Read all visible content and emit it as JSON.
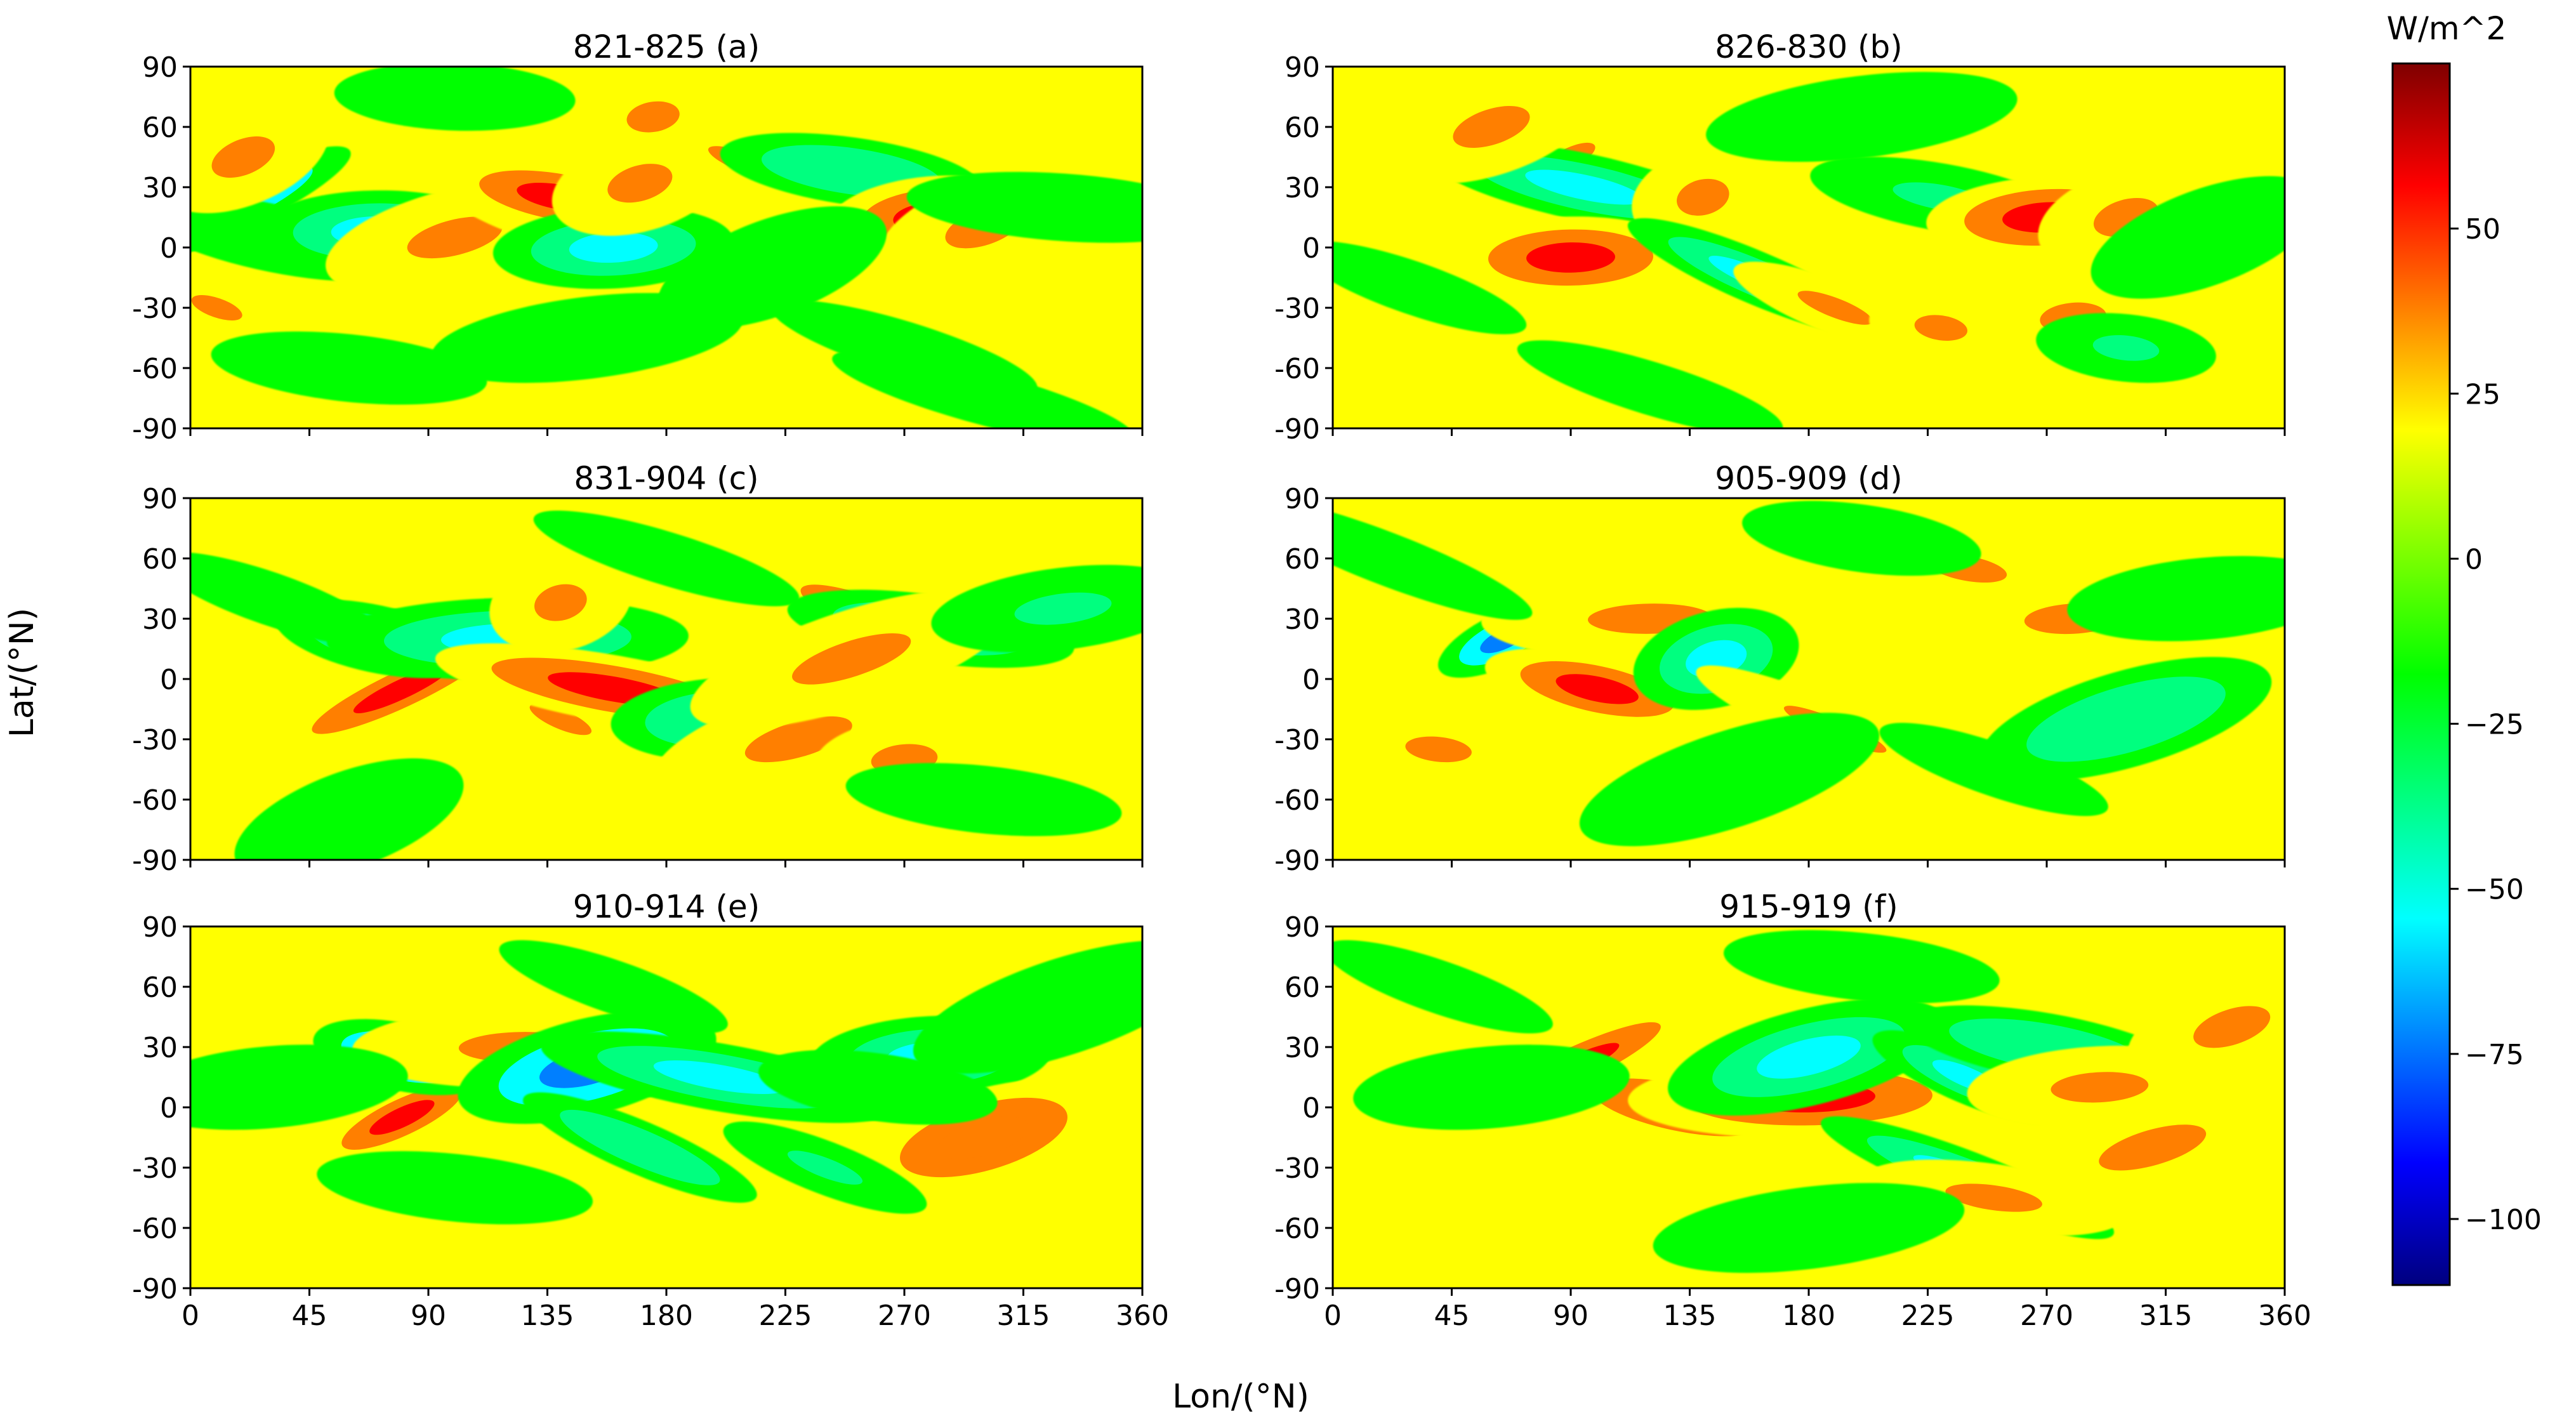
{
  "chart_data": [
    {
      "type": "heatmap",
      "title": "821-825 (a)",
      "xlim": [
        0,
        360
      ],
      "ylim": [
        -90,
        90
      ],
      "blobs": [
        {
          "lon": 15,
          "lat": 20,
          "v": -75
        },
        {
          "lon": 30,
          "lat": 5,
          "v": -25
        },
        {
          "lon": 70,
          "lat": 8,
          "v": -50
        },
        {
          "lon": 100,
          "lat": 5,
          "v": 40
        },
        {
          "lon": 120,
          "lat": 22,
          "v": 35
        },
        {
          "lon": 140,
          "lat": 25,
          "v": 50
        },
        {
          "lon": 160,
          "lat": 0,
          "v": -60
        },
        {
          "lon": 170,
          "lat": 32,
          "v": 35
        },
        {
          "lon": 210,
          "lat": 42,
          "v": 35
        },
        {
          "lon": 250,
          "lat": 38,
          "v": -40
        },
        {
          "lon": 280,
          "lat": 15,
          "v": 50
        },
        {
          "lon": 300,
          "lat": 10,
          "v": 35
        },
        {
          "lon": 10,
          "lat": -30,
          "v": 35
        },
        {
          "lon": 60,
          "lat": -60,
          "v": -25
        },
        {
          "lon": 150,
          "lat": -45,
          "v": -25
        },
        {
          "lon": 220,
          "lat": -10,
          "v": -25
        },
        {
          "lon": 270,
          "lat": -50,
          "v": -25
        },
        {
          "lon": 330,
          "lat": 20,
          "v": -25
        },
        {
          "lon": 175,
          "lat": 65,
          "v": 35
        },
        {
          "lon": 20,
          "lat": 45,
          "v": 35
        },
        {
          "lon": 300,
          "lat": -75,
          "v": -25
        },
        {
          "lon": 100,
          "lat": 75,
          "v": -25
        }
      ]
    },
    {
      "type": "heatmap",
      "title": "826-830 (b)",
      "xlim": [
        0,
        360
      ],
      "ylim": [
        -90,
        90
      ],
      "blobs": [
        {
          "lon": 90,
          "lat": 45,
          "v": 35
        },
        {
          "lon": 95,
          "lat": 30,
          "v": -55
        },
        {
          "lon": 90,
          "lat": -5,
          "v": 50
        },
        {
          "lon": 140,
          "lat": 25,
          "v": 35
        },
        {
          "lon": 160,
          "lat": -15,
          "v": -60
        },
        {
          "lon": 230,
          "lat": 25,
          "v": -30
        },
        {
          "lon": 270,
          "lat": 15,
          "v": 60
        },
        {
          "lon": 300,
          "lat": 15,
          "v": 35
        },
        {
          "lon": 190,
          "lat": -30,
          "v": 35
        },
        {
          "lon": 230,
          "lat": -40,
          "v": 35
        },
        {
          "lon": 280,
          "lat": -35,
          "v": 35
        },
        {
          "lon": 60,
          "lat": 60,
          "v": 35
        },
        {
          "lon": 30,
          "lat": -20,
          "v": -25
        },
        {
          "lon": 300,
          "lat": -50,
          "v": -35
        },
        {
          "lon": 200,
          "lat": 65,
          "v": -25
        },
        {
          "lon": 330,
          "lat": 5,
          "v": -25
        },
        {
          "lon": 120,
          "lat": -70,
          "v": -25
        }
      ]
    },
    {
      "type": "heatmap",
      "title": "831-904 (c)",
      "xlim": [
        0,
        360
      ],
      "ylim": [
        -90,
        90
      ],
      "blobs": [
        {
          "lon": 80,
          "lat": -5,
          "v": 55
        },
        {
          "lon": 70,
          "lat": 20,
          "v": -50
        },
        {
          "lon": 120,
          "lat": 20,
          "v": -55
        },
        {
          "lon": 140,
          "lat": 38,
          "v": 35
        },
        {
          "lon": 140,
          "lat": -20,
          "v": 35
        },
        {
          "lon": 160,
          "lat": -5,
          "v": 55
        },
        {
          "lon": 200,
          "lat": -20,
          "v": -45
        },
        {
          "lon": 230,
          "lat": -30,
          "v": 40
        },
        {
          "lon": 260,
          "lat": 30,
          "v": 50
        },
        {
          "lon": 280,
          "lat": 25,
          "v": -55
        },
        {
          "lon": 270,
          "lat": -40,
          "v": 35
        },
        {
          "lon": 250,
          "lat": 10,
          "v": 40
        },
        {
          "lon": 30,
          "lat": 40,
          "v": -25
        },
        {
          "lon": 300,
          "lat": -60,
          "v": -25
        },
        {
          "lon": 330,
          "lat": 35,
          "v": -30
        },
        {
          "lon": 60,
          "lat": -70,
          "v": -25
        },
        {
          "lon": 180,
          "lat": 60,
          "v": -25
        }
      ]
    },
    {
      "type": "heatmap",
      "title": "905-909 (d)",
      "xlim": [
        0,
        360
      ],
      "ylim": [
        -90,
        90
      ],
      "blobs": [
        {
          "lon": 65,
          "lat": 20,
          "v": -70
        },
        {
          "lon": 100,
          "lat": -5,
          "v": 65
        },
        {
          "lon": 120,
          "lat": 30,
          "v": 40
        },
        {
          "lon": 145,
          "lat": 10,
          "v": -50
        },
        {
          "lon": 190,
          "lat": -25,
          "v": 40
        },
        {
          "lon": 240,
          "lat": 55,
          "v": 35
        },
        {
          "lon": 280,
          "lat": 30,
          "v": 40
        },
        {
          "lon": 300,
          "lat": -20,
          "v": -40
        },
        {
          "lon": 20,
          "lat": 60,
          "v": -25
        },
        {
          "lon": 200,
          "lat": 70,
          "v": -25
        },
        {
          "lon": 330,
          "lat": 40,
          "v": -25
        },
        {
          "lon": 150,
          "lat": -50,
          "v": -25
        },
        {
          "lon": 250,
          "lat": -45,
          "v": -25
        },
        {
          "lon": 40,
          "lat": -35,
          "v": 35
        }
      ]
    },
    {
      "type": "heatmap",
      "title": "910-914  (e)",
      "xlim": [
        0,
        360
      ],
      "ylim": [
        -90,
        90
      ],
      "blobs": [
        {
          "lon": 80,
          "lat": -5,
          "v": 65
        },
        {
          "lon": 80,
          "lat": 25,
          "v": -70
        },
        {
          "lon": 125,
          "lat": 30,
          "v": 40
        },
        {
          "lon": 150,
          "lat": 20,
          "v": -75
        },
        {
          "lon": 170,
          "lat": -20,
          "v": -45
        },
        {
          "lon": 200,
          "lat": 15,
          "v": -55
        },
        {
          "lon": 280,
          "lat": 25,
          "v": -60
        },
        {
          "lon": 300,
          "lat": -15,
          "v": 45
        },
        {
          "lon": 240,
          "lat": -30,
          "v": -35
        },
        {
          "lon": 260,
          "lat": 10,
          "v": -25
        },
        {
          "lon": 30,
          "lat": 10,
          "v": -25
        },
        {
          "lon": 330,
          "lat": 50,
          "v": -25
        },
        {
          "lon": 160,
          "lat": 60,
          "v": -25
        },
        {
          "lon": 100,
          "lat": -40,
          "v": -25
        }
      ]
    },
    {
      "type": "heatmap",
      "title": "915-919 (f)",
      "xlim": [
        0,
        360
      ],
      "ylim": [
        -90,
        90
      ],
      "blobs": [
        {
          "lon": 90,
          "lat": 20,
          "v": 55
        },
        {
          "lon": 130,
          "lat": 0,
          "v": 45
        },
        {
          "lon": 180,
          "lat": 5,
          "v": 55
        },
        {
          "lon": 180,
          "lat": 25,
          "v": -55
        },
        {
          "lon": 240,
          "lat": 15,
          "v": -50
        },
        {
          "lon": 270,
          "lat": 30,
          "v": -45
        },
        {
          "lon": 290,
          "lat": 10,
          "v": 40
        },
        {
          "lon": 310,
          "lat": -20,
          "v": 40
        },
        {
          "lon": 240,
          "lat": -35,
          "v": -60
        },
        {
          "lon": 250,
          "lat": -45,
          "v": 40
        },
        {
          "lon": 60,
          "lat": 10,
          "v": -25
        },
        {
          "lon": 340,
          "lat": 40,
          "v": 35
        },
        {
          "lon": 40,
          "lat": 60,
          "v": -25
        },
        {
          "lon": 200,
          "lat": 70,
          "v": -25
        },
        {
          "lon": 180,
          "lat": -60,
          "v": -25
        }
      ]
    }
  ],
  "shared": {
    "xlabel": "Lon/(°N)",
    "ylabel": "Lat/(°N)",
    "xticks": [
      0,
      45,
      90,
      135,
      180,
      225,
      270,
      315,
      360
    ],
    "yticks": [
      90,
      60,
      30,
      0,
      -30,
      -60,
      -90
    ],
    "xtick_labels": [
      "0",
      "45",
      "90",
      "135",
      "180",
      "225",
      "270",
      "315",
      "360"
    ],
    "ytick_labels": [
      "90",
      "60",
      "30",
      "0",
      "-30",
      "-60",
      "-90"
    ]
  },
  "colorbar": {
    "title": "W/m^2",
    "range": [
      -110,
      75
    ],
    "ticks": [
      50,
      25,
      0,
      -25,
      -50,
      -75,
      -100
    ],
    "tick_labels": [
      "50",
      "25",
      "0",
      "−25",
      "−50",
      "−75",
      "−100"
    ],
    "colors": [
      "#00007f",
      "#0000ff",
      "#007fff",
      "#00ffff",
      "#00ff7f",
      "#00ff00",
      "#7fff00",
      "#ffff00",
      "#ff7f00",
      "#ff0000",
      "#7f0000"
    ]
  }
}
